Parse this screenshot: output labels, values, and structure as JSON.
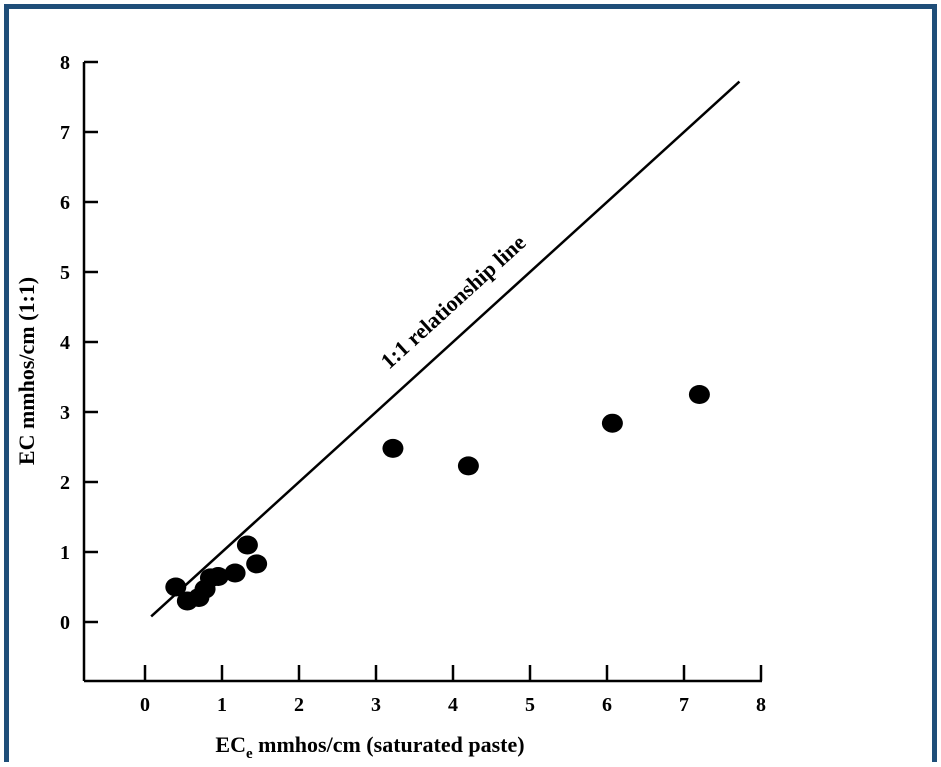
{
  "colors": {
    "border": "#1f4e79",
    "ink": "#000000",
    "background": "#ffffff"
  },
  "chart_data": {
    "type": "scatter",
    "x_label": {
      "main": "EC",
      "subscript": "e",
      "rest": " mmhos/cm (saturated paste)"
    },
    "y_label": "EC mmhos/cm (1:1)",
    "x_range": [
      -0.8,
      8
    ],
    "y_range": [
      -0.8,
      8
    ],
    "x_ticks": [
      0,
      1,
      2,
      3,
      4,
      5,
      6,
      7,
      8
    ],
    "y_ticks": [
      0,
      1,
      2,
      3,
      4,
      5,
      6,
      7,
      8
    ],
    "x_tick_labels": [
      "0",
      "1",
      "2",
      "3",
      "4",
      "5",
      "6",
      "7",
      "8"
    ],
    "y_tick_labels": [
      "0",
      "1",
      "2",
      "3",
      "4",
      "5",
      "6",
      "7",
      "8"
    ],
    "reference_line": {
      "label": "1:1 relationship line",
      "x": [
        0.08,
        7.72
      ],
      "y": [
        0.08,
        7.72
      ]
    },
    "points": [
      {
        "x": 0.4,
        "y": 0.5
      },
      {
        "x": 0.55,
        "y": 0.3
      },
      {
        "x": 0.7,
        "y": 0.35
      },
      {
        "x": 0.78,
        "y": 0.47
      },
      {
        "x": 0.85,
        "y": 0.63
      },
      {
        "x": 0.95,
        "y": 0.65
      },
      {
        "x": 1.17,
        "y": 0.7
      },
      {
        "x": 1.33,
        "y": 1.1
      },
      {
        "x": 1.45,
        "y": 0.83
      },
      {
        "x": 3.22,
        "y": 2.48
      },
      {
        "x": 4.2,
        "y": 2.23
      },
      {
        "x": 6.07,
        "y": 2.84
      },
      {
        "x": 7.2,
        "y": 3.25
      }
    ],
    "grid": false,
    "legend": "none"
  }
}
